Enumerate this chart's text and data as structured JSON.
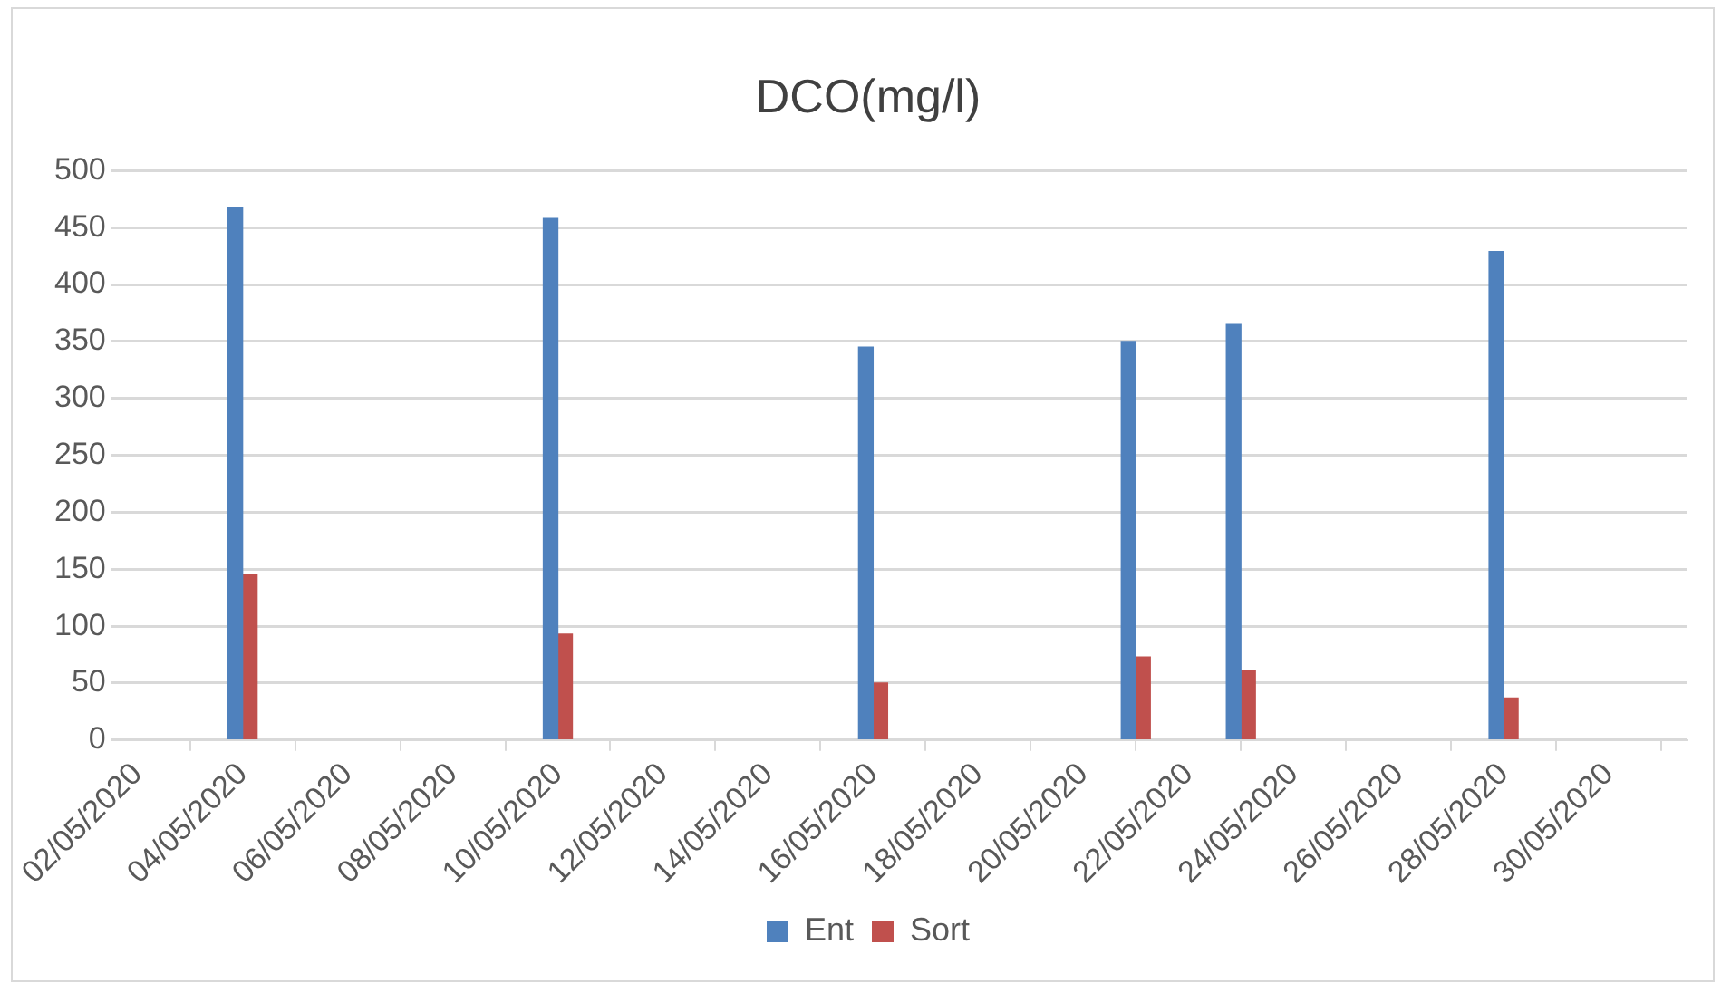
{
  "chart_data": {
    "type": "bar",
    "title": "DCO(mg/l)",
    "x": [
      "2020-05-04",
      "2020-05-10",
      "2020-05-16",
      "2020-05-21",
      "2020-05-23",
      "2020-05-28"
    ],
    "series": [
      {
        "name": "Ent",
        "color": "#4f81bd",
        "values": [
          468,
          458,
          345,
          350,
          365,
          429
        ]
      },
      {
        "name": "Sort",
        "color": "#c0504d",
        "values": [
          145,
          93,
          50,
          73,
          61,
          37
        ]
      }
    ],
    "xlim": [
      "2020-05-01T12:00",
      "2020-05-31T12:00"
    ],
    "xticks": [
      {
        "value": "2020-05-02",
        "label": "02/05/2020"
      },
      {
        "value": "2020-05-04",
        "label": "04/05/2020"
      },
      {
        "value": "2020-05-06",
        "label": "06/05/2020"
      },
      {
        "value": "2020-05-08",
        "label": "08/05/2020"
      },
      {
        "value": "2020-05-10",
        "label": "10/05/2020"
      },
      {
        "value": "2020-05-12",
        "label": "12/05/2020"
      },
      {
        "value": "2020-05-14",
        "label": "14/05/2020"
      },
      {
        "value": "2020-05-16",
        "label": "16/05/2020"
      },
      {
        "value": "2020-05-18",
        "label": "18/05/2020"
      },
      {
        "value": "2020-05-20",
        "label": "20/05/2020"
      },
      {
        "value": "2020-05-22",
        "label": "22/05/2020"
      },
      {
        "value": "2020-05-24",
        "label": "24/05/2020"
      },
      {
        "value": "2020-05-26",
        "label": "26/05/2020"
      },
      {
        "value": "2020-05-28",
        "label": "28/05/2020"
      },
      {
        "value": "2020-05-30",
        "label": "30/05/2020"
      }
    ],
    "ylim": [
      0,
      500
    ],
    "yticks": [
      0,
      50,
      100,
      150,
      200,
      250,
      300,
      350,
      400,
      450,
      500
    ],
    "grid": "y",
    "legend": "bottom"
  }
}
